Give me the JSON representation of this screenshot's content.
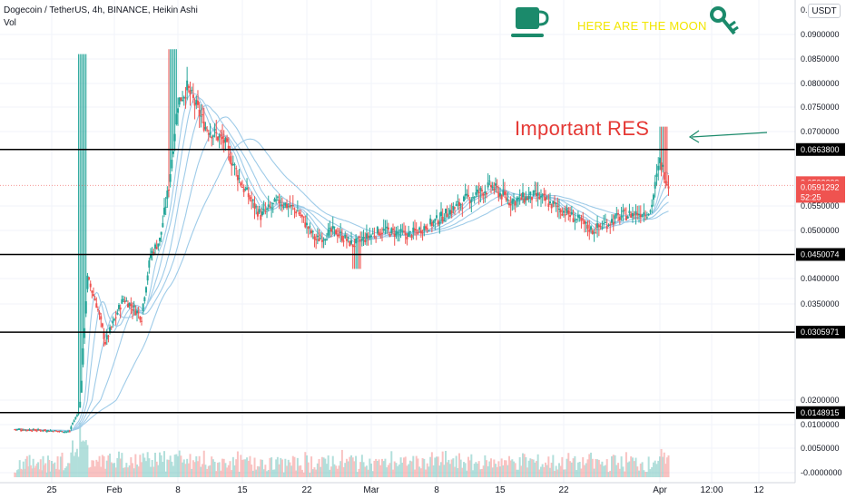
{
  "header": {
    "symbol_line": "Dogecoin / TetherUS, 4h, BINANCE, Heikin Ashi",
    "volume_label": "Vol",
    "currency": "USDT"
  },
  "annotations": {
    "moon_text": "HERE ARE THE MOON",
    "res_text": "Important RES",
    "moon_text_color": "#f2e600",
    "res_text_color": "#e53935",
    "arrow_color": "#1b8a6b",
    "icons": [
      "coffee-cup-icon",
      "key-icon"
    ]
  },
  "chart_data": {
    "type": "candlestick",
    "title": "Dogecoin / TetherUS, 4h, BINANCE, Heikin Ashi",
    "ylim": [
      -5e-07,
      0.1
    ],
    "grid": true,
    "y_ticks": [
      "0.0000000",
      "0.0050000",
      "0.0100000",
      "0.0200000",
      "0.0350000",
      "0.0400000",
      "0.0500000",
      "0.0550000",
      "0.0700000",
      "0.0750000",
      "0.0800000",
      "0.0850000",
      "0.0900000"
    ],
    "y_tick_values": [
      0.0,
      0.005,
      0.01,
      0.02,
      0.035,
      0.04,
      0.05,
      0.055,
      0.07,
      0.075,
      0.08,
      0.085,
      0.09
    ],
    "y_tick_display": [
      "-0.0000000",
      "0.0050000",
      "0.0100000",
      "0.0200000",
      "0.0350000",
      "0.0400000",
      "0.0500000",
      "0.0550000",
      "0.0700000",
      "0.0750000",
      "0.0800000",
      "0.0850000",
      "0.0900000"
    ],
    "top_tick": "0.",
    "x_ticks": [
      {
        "label": "25",
        "date": "2021-01-25"
      },
      {
        "label": "Feb",
        "date": "2021-02-01"
      },
      {
        "label": "8",
        "date": "2021-02-08"
      },
      {
        "label": "15",
        "date": "2021-02-15"
      },
      {
        "label": "22",
        "date": "2021-02-22"
      },
      {
        "label": "Mar",
        "date": "2021-03-01"
      },
      {
        "label": "8",
        "date": "2021-03-08"
      },
      {
        "label": "15",
        "date": "2021-03-15"
      },
      {
        "label": "22",
        "date": "2021-03-22"
      },
      {
        "label": "Apr",
        "date": "2021-04-01"
      },
      {
        "label": "12:00",
        "date": "2021-04-07"
      },
      {
        "label": "12",
        "date": "2021-04-12"
      }
    ],
    "horizontal_levels": [
      {
        "value": 0.06638,
        "label": "0.0663800",
        "color": "#000000"
      },
      {
        "value": 0.0450074,
        "label": "0.0450074",
        "color": "#000000"
      },
      {
        "value": 0.0305971,
        "label": "0.0305971",
        "color": "#000000"
      },
      {
        "value": 0.0148915,
        "label": "0.0148915",
        "color": "#000000"
      }
    ],
    "price_badges": [
      {
        "value": 0.0593299,
        "label": "0.0593299",
        "color": "#ef5350"
      },
      {
        "value": 0.0591292,
        "label": "0.0591292",
        "color": "#ef5350",
        "timer": "52:25"
      }
    ],
    "annotation_level": "Important RES",
    "colors": {
      "up": "#26a69a",
      "down": "#ef5350",
      "ma": "#9ecbe8"
    },
    "close_path": [
      {
        "date": "2021-01-20",
        "close": 0.009
      },
      {
        "date": "2021-01-24",
        "close": 0.0088
      },
      {
        "date": "2021-01-27",
        "close": 0.0085
      },
      {
        "date": "2021-01-28",
        "close": 0.015
      },
      {
        "date": "2021-01-29",
        "close": 0.04
      },
      {
        "date": "2021-01-30",
        "close": 0.035
      },
      {
        "date": "2021-01-31",
        "close": 0.029
      },
      {
        "date": "2021-02-02",
        "close": 0.036
      },
      {
        "date": "2021-02-04",
        "close": 0.033
      },
      {
        "date": "2021-02-05",
        "close": 0.045
      },
      {
        "date": "2021-02-06",
        "close": 0.048
      },
      {
        "date": "2021-02-07",
        "close": 0.059
      },
      {
        "date": "2021-02-08",
        "close": 0.076
      },
      {
        "date": "2021-02-09",
        "close": 0.079
      },
      {
        "date": "2021-02-11",
        "close": 0.071
      },
      {
        "date": "2021-02-13",
        "close": 0.068
      },
      {
        "date": "2021-02-15",
        "close": 0.059
      },
      {
        "date": "2021-02-17",
        "close": 0.053
      },
      {
        "date": "2021-02-19",
        "close": 0.056
      },
      {
        "date": "2021-02-21",
        "close": 0.054
      },
      {
        "date": "2021-02-23",
        "close": 0.048
      },
      {
        "date": "2021-02-25",
        "close": 0.05
      },
      {
        "date": "2021-02-27",
        "close": 0.047
      },
      {
        "date": "2021-03-02",
        "close": 0.05
      },
      {
        "date": "2021-03-05",
        "close": 0.049
      },
      {
        "date": "2021-03-08",
        "close": 0.052
      },
      {
        "date": "2021-03-11",
        "close": 0.056
      },
      {
        "date": "2021-03-14",
        "close": 0.059
      },
      {
        "date": "2021-03-16",
        "close": 0.056
      },
      {
        "date": "2021-03-19",
        "close": 0.057
      },
      {
        "date": "2021-03-22",
        "close": 0.054
      },
      {
        "date": "2021-03-25",
        "close": 0.05
      },
      {
        "date": "2021-03-28",
        "close": 0.053
      },
      {
        "date": "2021-03-31",
        "close": 0.054
      },
      {
        "date": "2021-04-01",
        "close": 0.064
      },
      {
        "date": "2021-04-02",
        "close": 0.0593
      }
    ]
  }
}
